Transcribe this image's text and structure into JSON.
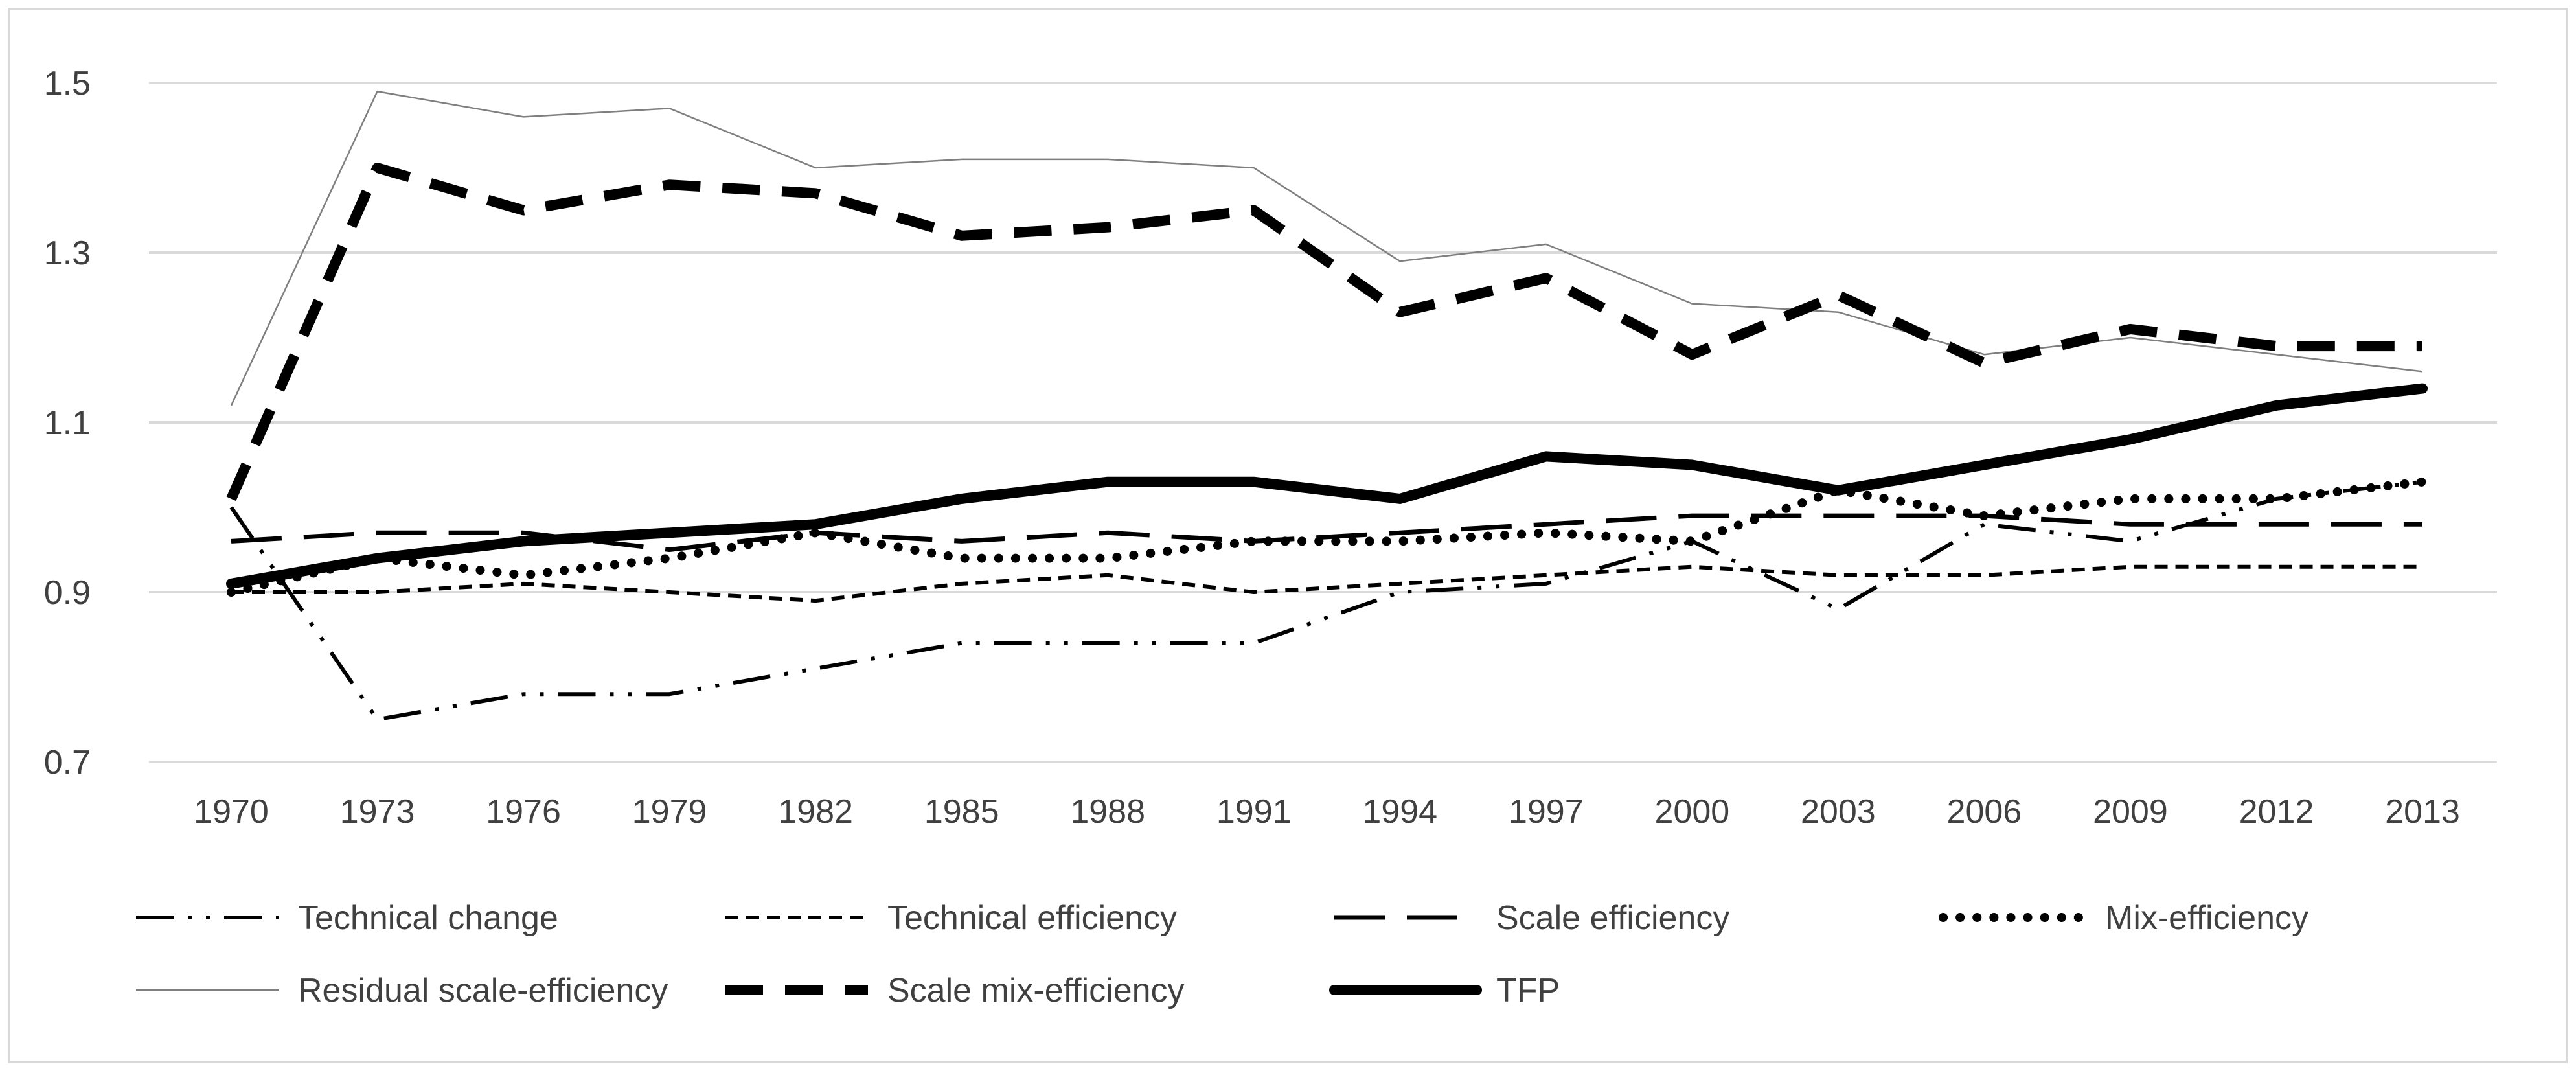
{
  "chart_data": {
    "type": "line",
    "title": "",
    "xlabel": "",
    "ylabel": "",
    "categories": [
      "1970",
      "1973",
      "1976",
      "1979",
      "1982",
      "1985",
      "1988",
      "1991",
      "1994",
      "1997",
      "2000",
      "2003",
      "2006",
      "2009",
      "2012",
      "2013"
    ],
    "ylim": [
      0.7,
      1.5
    ],
    "yticks": [
      0.7,
      0.9,
      1.1,
      1.3,
      1.5
    ],
    "ytick_labels": [
      "0.7",
      "0.9",
      "1.1",
      "1.3",
      "1.5"
    ],
    "grid": true,
    "legend_position": "bottom",
    "series": [
      {
        "name": "Technical change",
        "style": "dash-dot-dot",
        "values": [
          1.0,
          0.75,
          0.78,
          0.78,
          0.81,
          0.84,
          0.84,
          0.84,
          0.9,
          0.91,
          0.96,
          0.88,
          0.98,
          0.96,
          1.01,
          1.03
        ]
      },
      {
        "name": "Technical efficiency",
        "style": "short-dash",
        "values": [
          0.9,
          0.9,
          0.91,
          0.9,
          0.89,
          0.91,
          0.92,
          0.9,
          0.91,
          0.92,
          0.93,
          0.92,
          0.92,
          0.93,
          0.93,
          0.93
        ]
      },
      {
        "name": "Scale efficiency",
        "style": "long-dash",
        "values": [
          0.96,
          0.97,
          0.97,
          0.95,
          0.97,
          0.96,
          0.97,
          0.96,
          0.97,
          0.98,
          0.99,
          0.99,
          0.99,
          0.98,
          0.98,
          0.98
        ]
      },
      {
        "name": "Mix-efficiency",
        "style": "dots",
        "values": [
          0.9,
          0.94,
          0.92,
          0.94,
          0.97,
          0.94,
          0.94,
          0.96,
          0.96,
          0.97,
          0.96,
          1.02,
          0.99,
          1.01,
          1.01,
          1.03
        ]
      },
      {
        "name": "Residual scale-efficiency",
        "style": "thin",
        "values": [
          1.12,
          1.49,
          1.46,
          1.47,
          1.4,
          1.41,
          1.41,
          1.4,
          1.29,
          1.31,
          1.24,
          1.23,
          1.18,
          1.2,
          1.18,
          1.16
        ]
      },
      {
        "name": "Scale mix-efficiency",
        "style": "thick-dash",
        "values": [
          1.01,
          1.4,
          1.35,
          1.38,
          1.37,
          1.32,
          1.33,
          1.35,
          1.23,
          1.27,
          1.18,
          1.25,
          1.17,
          1.21,
          1.19,
          1.19
        ]
      },
      {
        "name": "TFP",
        "style": "thick",
        "values": [
          0.91,
          0.94,
          0.96,
          0.97,
          0.98,
          1.01,
          1.03,
          1.03,
          1.01,
          1.06,
          1.05,
          1.02,
          1.05,
          1.08,
          1.12,
          1.14
        ]
      }
    ]
  }
}
